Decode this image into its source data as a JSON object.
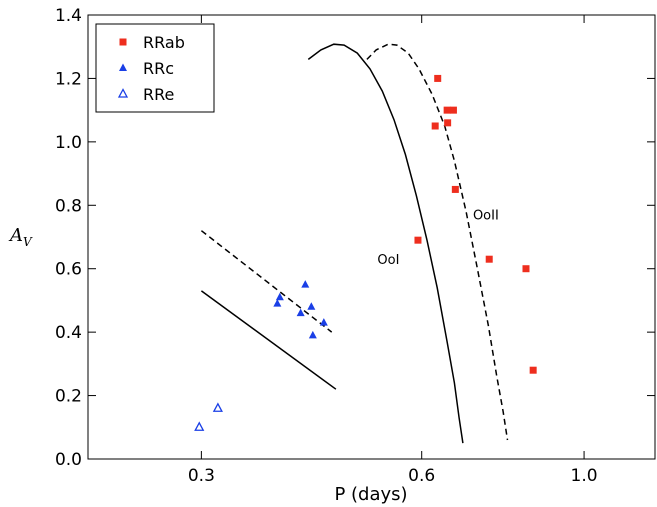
{
  "chart_data": {
    "type": "scatter",
    "xlabel": "P (days)",
    "ylabel_main": "A",
    "ylabel_sub": "V",
    "x_scale": "log",
    "xlim": [
      0.21,
      1.25
    ],
    "ylim": [
      0.0,
      1.4
    ],
    "x_ticks": [
      {
        "value": 0.3,
        "label": "0.3"
      },
      {
        "value": 0.6,
        "label": "0.6"
      },
      {
        "value": 1.0,
        "label": "1.0"
      }
    ],
    "y_ticks": [
      {
        "value": 0.0,
        "label": "0.0"
      },
      {
        "value": 0.2,
        "label": "0.2"
      },
      {
        "value": 0.4,
        "label": "0.4"
      },
      {
        "value": 0.6,
        "label": "0.6"
      },
      {
        "value": 0.8,
        "label": "0.8"
      },
      {
        "value": 1.0,
        "label": "1.0"
      },
      {
        "value": 1.2,
        "label": "1.2"
      },
      {
        "value": 1.4,
        "label": "1.4"
      }
    ],
    "grid": false,
    "legend_position": "top-left",
    "series": [
      {
        "name": "RRab",
        "marker": "filled-square",
        "color": "#ee2e1e",
        "points": [
          [
            0.631,
            1.2
          ],
          [
            0.626,
            1.05
          ],
          [
            0.65,
            1.1
          ],
          [
            0.663,
            1.1
          ],
          [
            0.651,
            1.06
          ],
          [
            0.667,
            0.85
          ],
          [
            0.593,
            0.69
          ],
          [
            0.742,
            0.63
          ],
          [
            0.833,
            0.6
          ],
          [
            0.852,
            0.28
          ]
        ]
      },
      {
        "name": "RRc",
        "marker": "filled-triangle",
        "color": "#1a3fe6",
        "points": [
          [
            0.381,
            0.49
          ],
          [
            0.384,
            0.51
          ],
          [
            0.416,
            0.55
          ],
          [
            0.41,
            0.46
          ],
          [
            0.424,
            0.48
          ],
          [
            0.441,
            0.43
          ],
          [
            0.426,
            0.39
          ]
        ]
      },
      {
        "name": "RRe",
        "marker": "open-triangle",
        "color": "#1a3fe6",
        "points": [
          [
            0.298,
            0.1
          ],
          [
            0.316,
            0.16
          ]
        ]
      }
    ],
    "curves": [
      {
        "label": "OoI",
        "style": "solid",
        "points": [
          [
            0.42,
            1.26
          ],
          [
            0.437,
            1.29
          ],
          [
            0.455,
            1.308
          ],
          [
            0.47,
            1.305
          ],
          [
            0.49,
            1.28
          ],
          [
            0.51,
            1.23
          ],
          [
            0.53,
            1.16
          ],
          [
            0.55,
            1.07
          ],
          [
            0.57,
            0.96
          ],
          [
            0.59,
            0.83
          ],
          [
            0.61,
            0.69
          ],
          [
            0.63,
            0.54
          ],
          [
            0.65,
            0.37
          ],
          [
            0.665,
            0.24
          ],
          [
            0.675,
            0.13
          ],
          [
            0.683,
            0.05
          ]
        ]
      },
      {
        "label": "OoII",
        "style": "dashed",
        "points": [
          [
            0.505,
            1.26
          ],
          [
            0.52,
            1.29
          ],
          [
            0.54,
            1.308
          ],
          [
            0.555,
            1.305
          ],
          [
            0.575,
            1.28
          ],
          [
            0.595,
            1.23
          ],
          [
            0.62,
            1.15
          ],
          [
            0.645,
            1.05
          ],
          [
            0.665,
            0.94
          ],
          [
            0.69,
            0.78
          ],
          [
            0.715,
            0.6
          ],
          [
            0.74,
            0.42
          ],
          [
            0.76,
            0.26
          ],
          [
            0.775,
            0.15
          ],
          [
            0.786,
            0.06
          ]
        ]
      },
      {
        "label": "",
        "style": "solid",
        "points": [
          [
            0.3,
            0.53
          ],
          [
            0.458,
            0.22
          ]
        ]
      },
      {
        "label": "",
        "style": "dashed",
        "points": [
          [
            0.3,
            0.72
          ],
          [
            0.452,
            0.4
          ]
        ]
      }
    ],
    "annotations": [
      {
        "text": "OoI",
        "x": 0.522,
        "y": 0.615
      },
      {
        "text": "OoII",
        "x": 0.705,
        "y": 0.755
      }
    ]
  }
}
